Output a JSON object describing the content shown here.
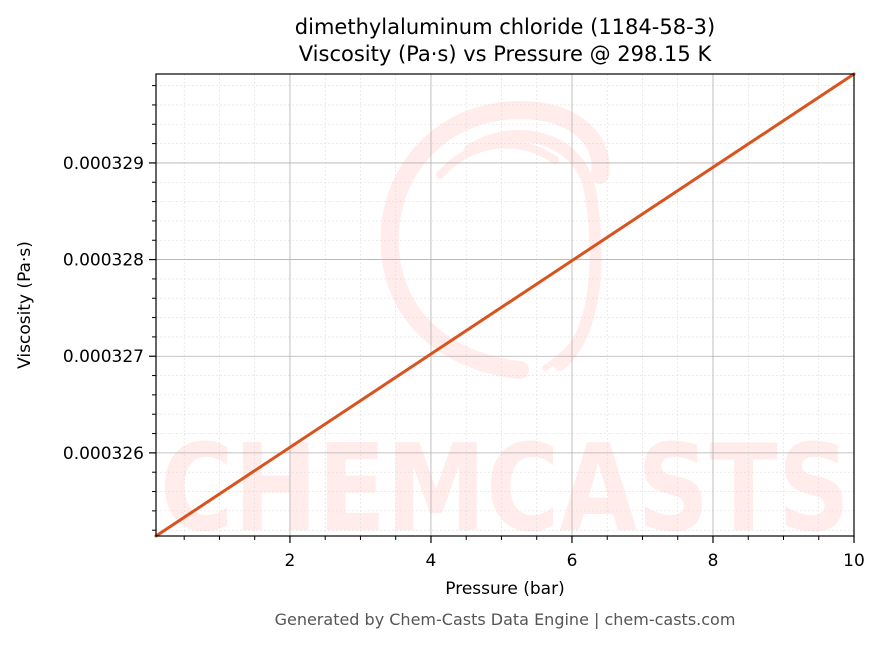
{
  "chart_data": {
    "type": "line",
    "title_line1": "dimethylaluminum chloride (1184-58-3)",
    "title_line2": "Viscosity (Pa·s) vs Pressure @ 298.15 K",
    "xlabel": "Pressure (bar)",
    "ylabel": "Viscosity (Pa·s)",
    "xlim": [
      0.1,
      10
    ],
    "ylim": [
      0.00032514,
      0.00032992
    ],
    "x_ticks": [
      2,
      4,
      6,
      8,
      10
    ],
    "x_tick_labels": [
      "2",
      "4",
      "6",
      "8",
      "10"
    ],
    "y_ticks": [
      0.000326,
      0.000327,
      0.000328,
      0.000329
    ],
    "y_tick_labels": [
      "0.000326",
      "0.000327",
      "0.000328",
      "0.000329"
    ],
    "grid": true,
    "series": [
      {
        "color": "#d9531e",
        "x": [
          0.1,
          10
        ],
        "y": [
          0.00032514,
          0.00032992
        ]
      }
    ],
    "watermark_text": "CHEMCASTS",
    "footer": "Generated by Chem-Casts Data Engine | chem-casts.com"
  }
}
